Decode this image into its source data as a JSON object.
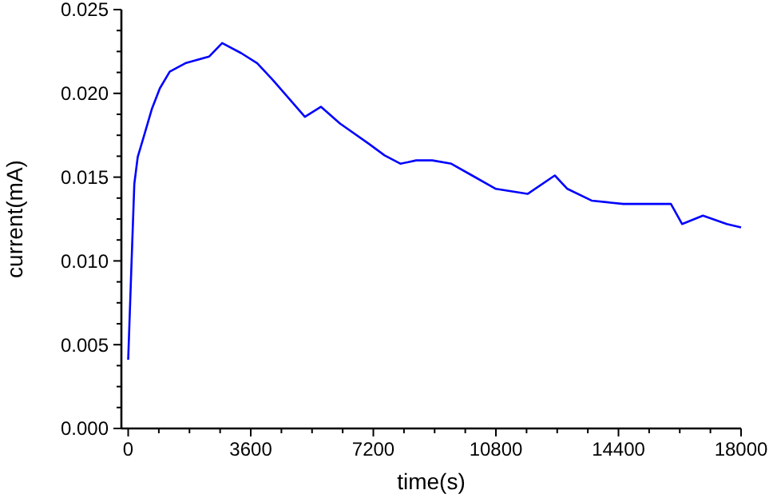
{
  "chart_data": {
    "type": "line",
    "xlabel": "time(s)",
    "ylabel": "current(mA)",
    "xlim": [
      -200,
      18000
    ],
    "ylim": [
      0,
      0.025
    ],
    "xticks": [
      0,
      {
        "value": 900,
        "label": null
      },
      {
        "value": 1800,
        "label": null
      },
      {
        "value": 2700,
        "label": null
      },
      3600,
      {
        "value": 4500,
        "label": null
      },
      {
        "value": 5400,
        "label": null
      },
      {
        "value": 6300,
        "label": null
      },
      7200,
      {
        "value": 8100,
        "label": null
      },
      {
        "value": 9000,
        "label": null
      },
      {
        "value": 9900,
        "label": null
      },
      10800,
      {
        "value": 11700,
        "label": null
      },
      {
        "value": 12600,
        "label": null
      },
      {
        "value": 13500,
        "label": null
      },
      14400,
      {
        "value": 15300,
        "label": null
      },
      {
        "value": 16200,
        "label": null
      },
      {
        "value": 17100,
        "label": null
      },
      18000
    ],
    "yticks": [
      {
        "value": 0,
        "label": "0.000"
      },
      {
        "value": 0.00125,
        "label": null
      },
      {
        "value": 0.0025,
        "label": null
      },
      {
        "value": 0.00375,
        "label": null
      },
      0.005,
      {
        "value": 0.00625,
        "label": null
      },
      {
        "value": 0.0075,
        "label": null
      },
      {
        "value": 0.00875,
        "label": null
      },
      {
        "value": 0.01,
        "label": "0.010"
      },
      {
        "value": 0.01125,
        "label": null
      },
      {
        "value": 0.0125,
        "label": null
      },
      {
        "value": 0.01375,
        "label": null
      },
      0.015,
      {
        "value": 0.01625,
        "label": null
      },
      {
        "value": 0.0175,
        "label": null
      },
      {
        "value": 0.01875,
        "label": null
      },
      {
        "value": 0.02,
        "label": "0.020"
      },
      {
        "value": 0.02125,
        "label": null
      },
      {
        "value": 0.0225,
        "label": null
      },
      {
        "value": 0.02375,
        "label": null
      },
      0.025
    ],
    "grid": false,
    "marker": "none",
    "line_style": "solid",
    "series": [
      {
        "color": "#0000ff",
        "x": [
          0,
          90,
          180,
          280,
          470,
          700,
          930,
          1220,
          1680,
          2380,
          2760,
          3320,
          3790,
          4250,
          4720,
          5190,
          5660,
          6220,
          7060,
          7530,
          8000,
          8460,
          8930,
          9490,
          10100,
          10800,
          11730,
          12530,
          12900,
          13610,
          14540,
          15940,
          16270,
          16880,
          17580,
          18000
        ],
        "values": [
          0.0041,
          0.0094,
          0.0146,
          0.0162,
          0.0175,
          0.0191,
          0.0203,
          0.0213,
          0.0218,
          0.0222,
          0.023,
          0.0224,
          0.0218,
          0.0208,
          0.0197,
          0.0186,
          0.0192,
          0.0182,
          0.017,
          0.0163,
          0.0158,
          0.016,
          0.016,
          0.0158,
          0.0151,
          0.0143,
          0.014,
          0.0151,
          0.0143,
          0.0136,
          0.0134,
          0.0134,
          0.0122,
          0.0127,
          0.0122,
          0.012
        ]
      }
    ]
  }
}
